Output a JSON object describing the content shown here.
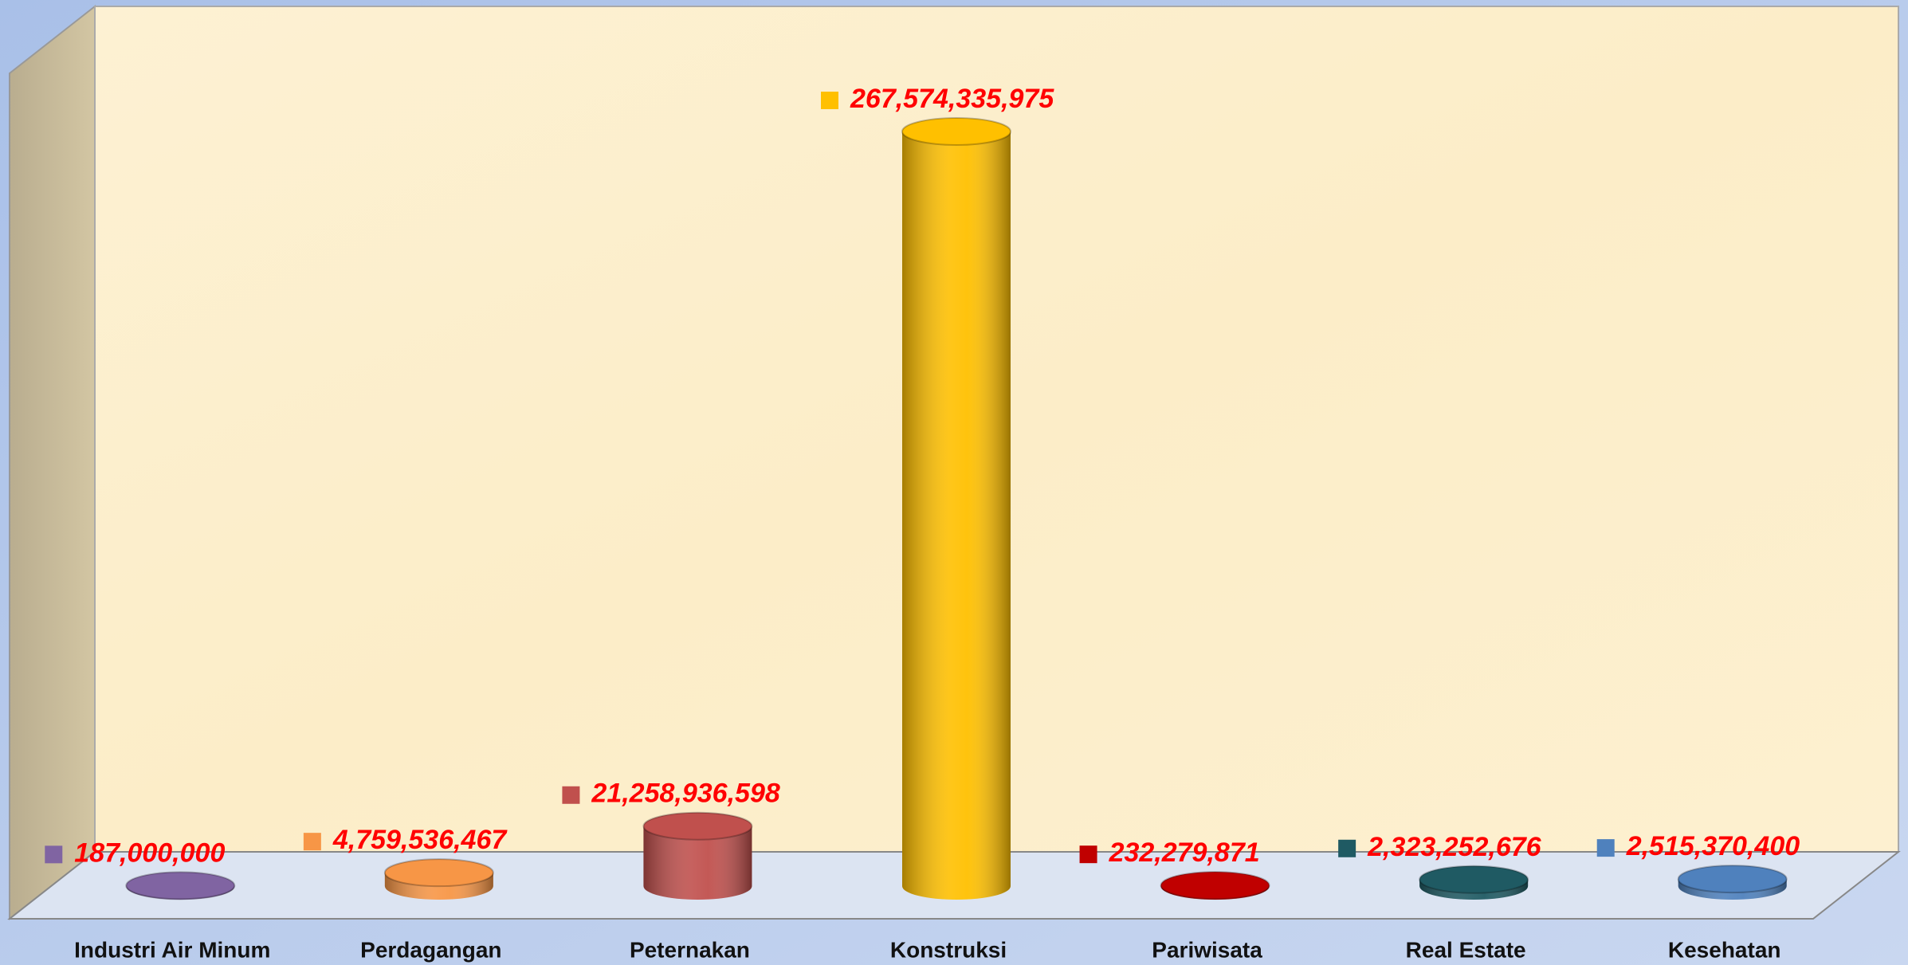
{
  "chart_data": {
    "type": "bar3d",
    "categories": [
      "Industri Air Minum",
      "Perdagangan",
      "Peternakan",
      "Konstruksi",
      "Pariwisata",
      "Real Estate",
      "Kesehatan"
    ],
    "values": [
      187000000,
      4759536467,
      21258936598,
      267574335975,
      232279871,
      2323252676,
      2515370400
    ],
    "value_labels": [
      "187,000,000",
      "4,759,536,467",
      "21,258,936,598",
      "267,574,335,975",
      "232,279,871",
      "2,323,252,676",
      "2,515,370,400"
    ],
    "colors": [
      "#8064a2",
      "#f79646",
      "#c0504d",
      "#ffc000",
      "#c00000",
      "#1f5a63",
      "#4f81bd"
    ]
  }
}
